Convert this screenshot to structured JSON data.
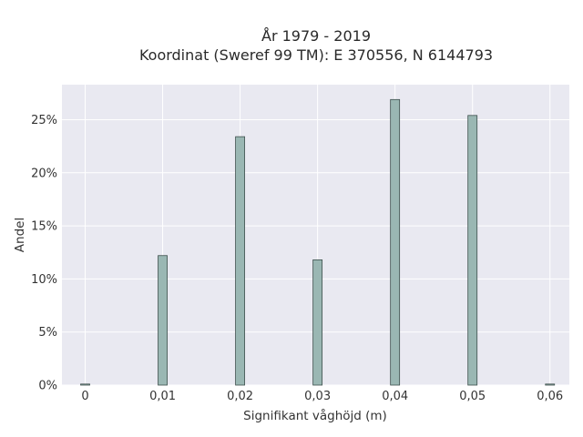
{
  "chart_data": {
    "type": "bar",
    "title_lines": [
      "År 1979 - 2019",
      "Koordinat (Sweref 99 TM): E 370556, N 6144793"
    ],
    "xlabel": "Signifikant våghöjd (m)",
    "ylabel": "Andel",
    "x": [
      0,
      0.01,
      0.02,
      0.03,
      0.04,
      0.05,
      0.06
    ],
    "values": [
      0.1,
      12.2,
      23.4,
      11.8,
      26.9,
      25.4,
      0.1
    ],
    "x_tick_labels": [
      "0",
      "0,01",
      "0,02",
      "0,03",
      "0,04",
      "0,05",
      "0,06"
    ],
    "y_tick_labels": [
      "0%",
      "5%",
      "10%",
      "15%",
      "20%",
      "25%"
    ],
    "y_ticks": [
      0,
      5,
      10,
      15,
      20,
      25
    ],
    "xlim": [
      -0.003,
      0.0625
    ],
    "ylim": [
      0,
      28.3
    ],
    "y_unit": "%",
    "grid": true,
    "bar_color": "#9ab7b3",
    "bar_edge_color": "#3d4f4c",
    "plot_background": "#e9e9f1",
    "grid_color": "#ffffff"
  }
}
